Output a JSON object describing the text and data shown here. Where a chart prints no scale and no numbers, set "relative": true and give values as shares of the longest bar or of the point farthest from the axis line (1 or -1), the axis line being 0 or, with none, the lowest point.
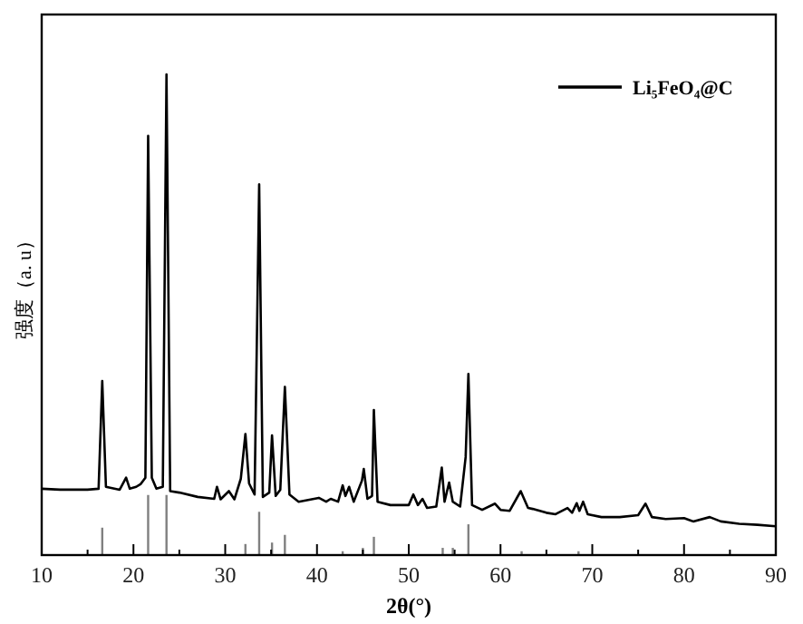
{
  "chart_data": {
    "type": "line",
    "relative": true,
    "xlabel": "2θ(°)",
    "ylabel": "强度（a. u）",
    "xlim": [
      10,
      90
    ],
    "xticks": [
      10,
      {
        "value": 15,
        "label": null
      },
      20,
      {
        "value": 25,
        "label": null
      },
      30,
      {
        "value": 35,
        "label": null
      },
      40,
      {
        "value": 45,
        "label": null
      },
      50,
      {
        "value": 55,
        "label": null
      },
      60,
      {
        "value": 65,
        "label": null
      },
      70,
      {
        "value": 75,
        "label": null
      },
      80,
      {
        "value": 85,
        "label": null
      },
      90
    ],
    "legend": "top right",
    "series": [
      {
        "name": "Li₅FeO₄@C",
        "color": "#000000",
        "x": [
          10,
          12,
          15,
          16.2,
          16.6,
          17.0,
          18.5,
          19.2,
          19.6,
          20.3,
          20.8,
          21.3,
          21.6,
          22.0,
          22.5,
          23.2,
          23.6,
          24.0,
          25,
          27,
          28.8,
          29.1,
          29.5,
          30.4,
          31.0,
          31.7,
          32.2,
          32.6,
          33.2,
          33.7,
          34.1,
          34.8,
          35.1,
          35.5,
          36.0,
          36.5,
          37.0,
          38,
          40.2,
          41,
          41.5,
          42.3,
          42.8,
          43.1,
          43.5,
          44.0,
          44.9,
          45.1,
          45.5,
          46.0,
          46.2,
          46.6,
          48,
          50,
          50.5,
          51.0,
          51.5,
          52.0,
          53.0,
          53.6,
          53.9,
          54.4,
          54.8,
          55.6,
          56.2,
          56.5,
          56.9,
          58,
          59.4,
          60,
          61,
          62.2,
          63,
          63.5,
          65,
          66,
          67.3,
          67.8,
          68.3,
          68.6,
          69.0,
          69.5,
          71,
          73,
          75,
          75.8,
          76.5,
          78,
          80,
          81,
          82.8,
          84,
          86,
          88,
          90
        ],
        "values": [
          0.138,
          0.136,
          0.136,
          0.138,
          0.362,
          0.142,
          0.136,
          0.161,
          0.138,
          0.142,
          0.148,
          0.161,
          0.872,
          0.161,
          0.138,
          0.142,
          1.0,
          0.133,
          0.13,
          0.121,
          0.117,
          0.142,
          0.116,
          0.133,
          0.116,
          0.159,
          0.252,
          0.149,
          0.126,
          0.771,
          0.121,
          0.13,
          0.249,
          0.123,
          0.136,
          0.35,
          0.126,
          0.111,
          0.119,
          0.111,
          0.117,
          0.111,
          0.145,
          0.123,
          0.142,
          0.111,
          0.155,
          0.179,
          0.117,
          0.123,
          0.302,
          0.111,
          0.104,
          0.104,
          0.126,
          0.104,
          0.117,
          0.098,
          0.101,
          0.182,
          0.111,
          0.151,
          0.111,
          0.101,
          0.204,
          0.377,
          0.104,
          0.094,
          0.107,
          0.094,
          0.092,
          0.133,
          0.098,
          0.096,
          0.088,
          0.085,
          0.098,
          0.088,
          0.108,
          0.092,
          0.111,
          0.085,
          0.079,
          0.079,
          0.083,
          0.107,
          0.079,
          0.075,
          0.077,
          0.07,
          0.079,
          0.07,
          0.065,
          0.063,
          0.06
        ]
      },
      {
        "type": "bar",
        "color": "#808080",
        "x": [
          16.6,
          21.6,
          23.6,
          32.2,
          33.7,
          35.1,
          36.5,
          42.8,
          45,
          46.2,
          53.7,
          54.8,
          56.5,
          62.3,
          68.5
        ],
        "values": [
          0.057,
          0.125,
          0.125,
          0.023,
          0.09,
          0.026,
          0.042,
          0.008,
          0.015,
          0.038,
          0.015,
          0.015,
          0.064,
          0.008,
          0.008
        ]
      }
    ]
  }
}
